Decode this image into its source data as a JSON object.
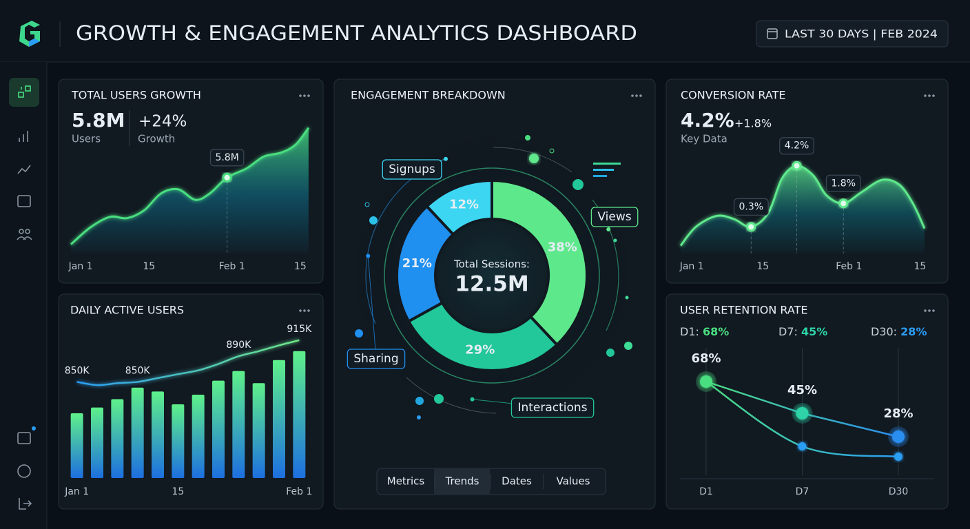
{
  "header": {
    "title": "GROWTH & ENGAGEMENT ANALYTICS DASHBOARD",
    "date_range": "LAST 30 DAYS | FEB 2024"
  },
  "chart_data": [
    {
      "type": "area",
      "title": "TOTAL USERS GROWTH",
      "kpis": [
        {
          "value": "5.8M",
          "label": "Users"
        },
        {
          "value": "+24%",
          "label": "Growth"
        }
      ],
      "x": [
        -1,
        3,
        7,
        10.5,
        14,
        17.5,
        21,
        24.5,
        27.5,
        31,
        35,
        38.5,
        42,
        45,
        47.7
      ],
      "values": [
        0.7,
        2.0,
        2.8,
        2.7,
        3.3,
        4.6,
        4.9,
        4.1,
        4.6,
        5.8,
        6.5,
        7.4,
        7.7,
        8.3,
        9.6
      ],
      "value_labels": [
        null,
        null,
        null,
        null,
        null,
        null,
        null,
        null,
        null,
        "5.8M",
        null,
        null,
        null,
        null,
        null
      ],
      "xlim": [
        -1,
        48
      ],
      "xticks": [
        {
          "value": 1,
          "label": "Jan 1"
        },
        15,
        {
          "value": 32,
          "label": "Feb 1"
        },
        {
          "value": 46,
          "label": "15"
        }
      ],
      "ylim": [
        0,
        10
      ],
      "color": "#4ade80",
      "color2": "#0e7490"
    },
    {
      "type": "bar",
      "title": "DAILY ACTIVE USERS",
      "categories": [
        "Jan 1",
        null,
        null,
        null,
        null,
        "15",
        null,
        null,
        null,
        null,
        null,
        "Feb 1"
      ],
      "series": [
        {
          "values": [
            801,
            810,
            823,
            841,
            835,
            815,
            830,
            852,
            867,
            848,
            884,
            898
          ],
          "colors": [
            "#5ef08a",
            "#1d6fe0"
          ]
        },
        {
          "values": [
            850,
            845,
            848,
            850,
            856,
            862,
            868,
            878,
            890,
            898,
            907,
            915
          ],
          "value_labels": [
            "850K",
            null,
            null,
            "850K",
            null,
            null,
            null,
            null,
            "890K",
            null,
            null,
            "915K"
          ],
          "colors": [
            "#2a9df4",
            "#6ee787"
          ]
        }
      ],
      "ylim": [
        700,
        930
      ]
    },
    {
      "type": "donut",
      "title": "ENGAGEMENT BREAKDOWN",
      "categories": [
        "Views",
        "Interactions",
        "Sharing",
        "Signups"
      ],
      "values": [
        38,
        29,
        21,
        12
      ],
      "value_labels": [
        "38%",
        "29%",
        "21%",
        "12%"
      ],
      "colors": [
        "#5ee88c",
        "#22c79a",
        "#1f8ff0",
        "#3cd6f2"
      ],
      "center_label": "Total Sessions:",
      "center_value": "12.5M",
      "tabs": {
        "items": [
          "Metrics",
          "Trends",
          "Dates",
          "Values"
        ],
        "active": 1
      }
    },
    {
      "type": "area",
      "title": "CONVERSION RATE",
      "kpis": [
        {
          "value": "4.2%",
          "label": "Key Data"
        },
        {
          "value": "+1.8%"
        }
      ],
      "x": [
        -1.2,
        1.8,
        5.9,
        9.3,
        12.7,
        16.1,
        18.8,
        21.7,
        24.9,
        27.6,
        30.9,
        34.4,
        38.5,
        41.9,
        44.6,
        46.9
      ],
      "values": [
        -0.9,
        0.3,
        1.0,
        0.8,
        0.3,
        1.2,
        3.4,
        4.2,
        3.6,
        2.3,
        1.8,
        2.5,
        3.3,
        3.0,
        1.8,
        0.2
      ],
      "value_labels": [
        null,
        null,
        null,
        null,
        "0.3%",
        null,
        null,
        "4.2%",
        null,
        null,
        "1.8%",
        null,
        null,
        null,
        null,
        null
      ],
      "xlim": [
        -1.2,
        46.9
      ],
      "xticks": [
        {
          "value": 1,
          "label": "Jan 1"
        },
        15,
        {
          "value": 32,
          "label": "Feb 1"
        },
        {
          "value": 46,
          "label": "15"
        }
      ],
      "ylim": [
        -1.4,
        5.2
      ],
      "color": "#5ee88c",
      "color2": "#0e6a7a"
    },
    {
      "type": "line",
      "title": "USER RETENTION RATE",
      "summary": [
        {
          "label": "D1:",
          "value": "68%"
        },
        {
          "label": "D7:",
          "value": "45%"
        },
        {
          "label": "D30:",
          "value": "28%"
        }
      ],
      "categories": [
        "D1",
        "D7",
        "D30"
      ],
      "series": [
        {
          "values": [
            68,
            45,
            28
          ],
          "value_labels": [
            "68%",
            "45%",
            "28%"
          ],
          "colors": [
            "#4ade80",
            "#2dd4a8",
            "#2a8df0"
          ]
        },
        {
          "values": [
            68,
            21,
            13.5
          ],
          "colors": [
            "#4ade80",
            "#2a9df4"
          ]
        }
      ],
      "ylim": [
        0,
        85
      ]
    }
  ]
}
